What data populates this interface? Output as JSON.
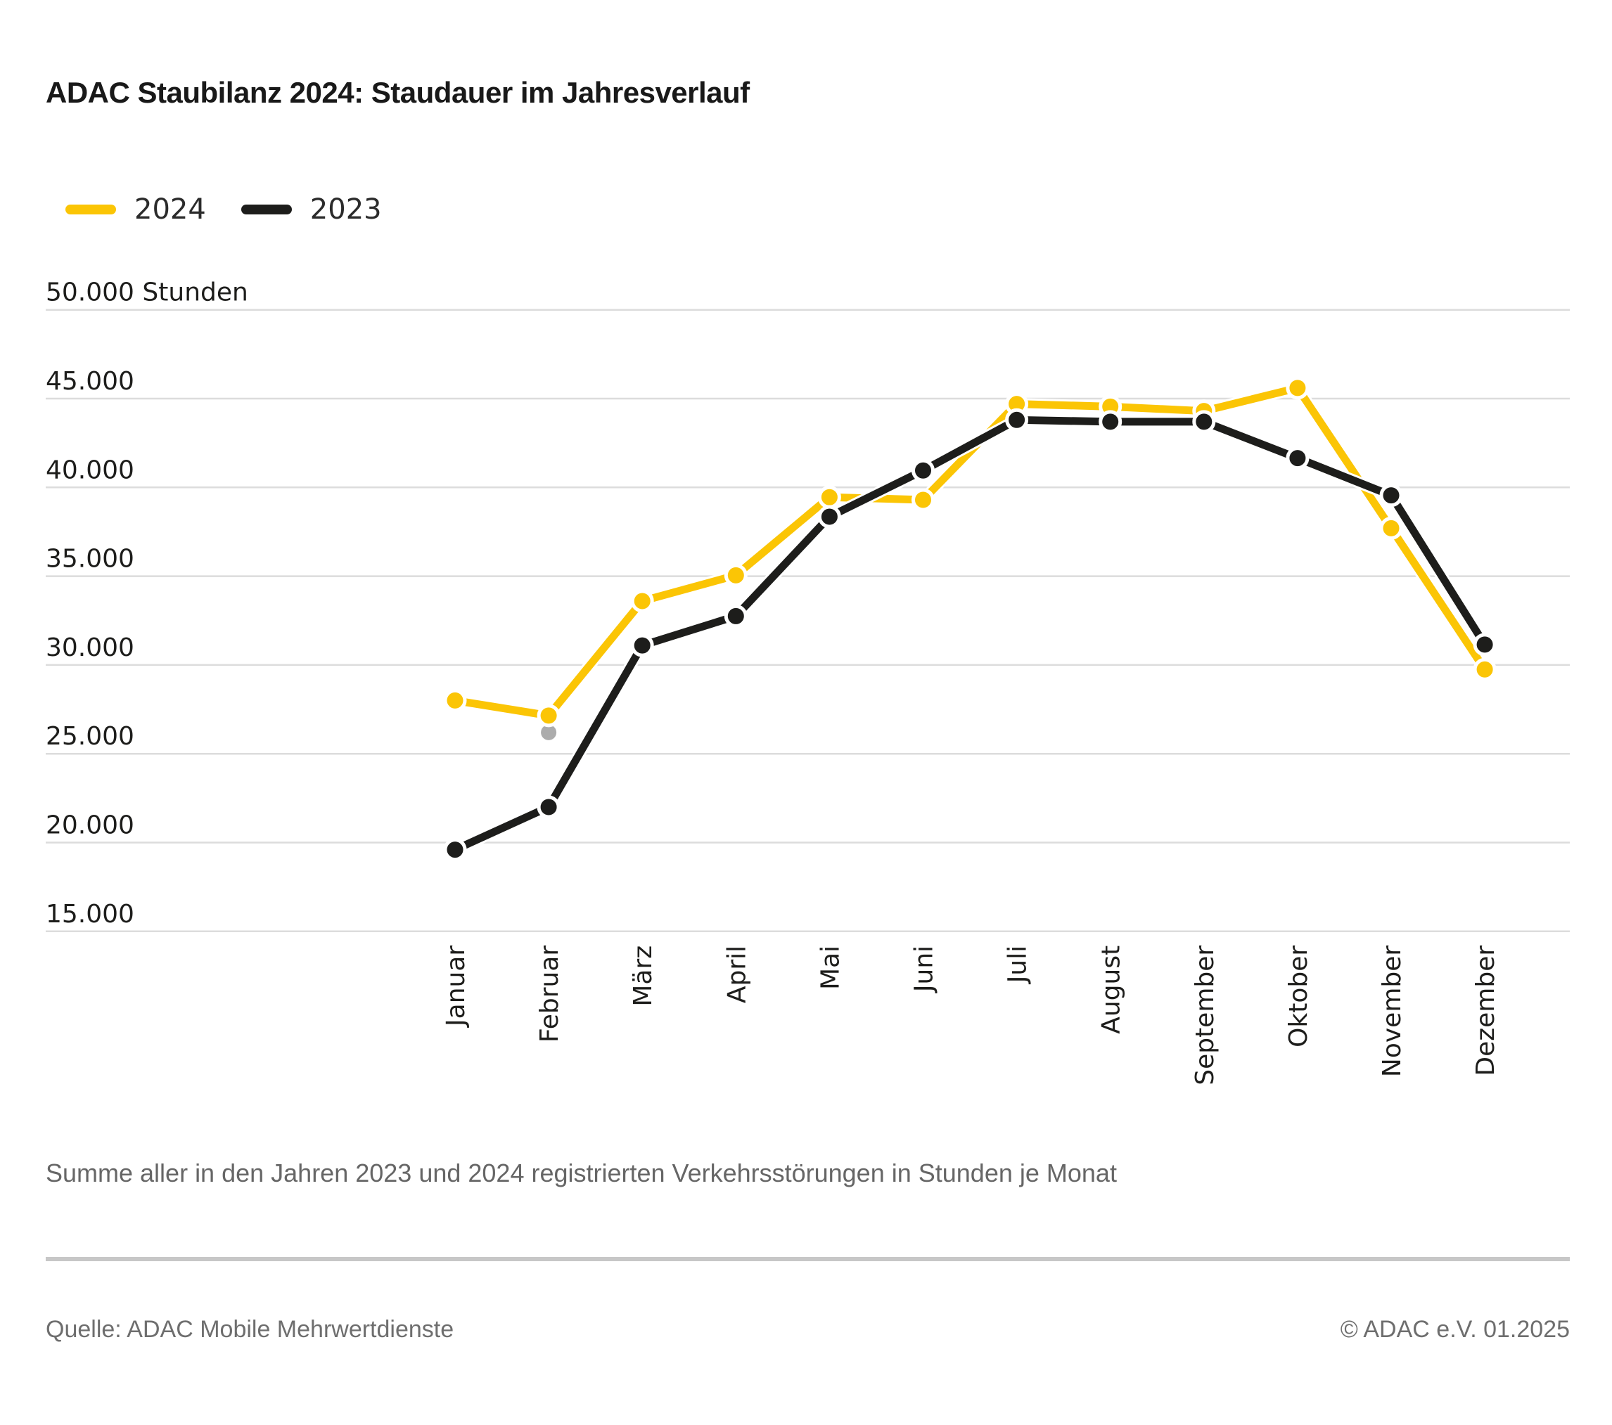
{
  "title": "ADAC Staubilanz 2024: Staudauer im Jahresverlauf",
  "legend": [
    {
      "label": "2024",
      "color": "#FBC505"
    },
    {
      "label": "2023",
      "color": "#1D1D1B"
    }
  ],
  "subtitle": "Summe aller in den Jahren 2023 und 2024 registrierten Verkehrsstörungen in Stunden je Monat",
  "footer": {
    "source": "Quelle: ADAC Mobile Mehrwertdienste",
    "copyright": "© ADAC e.V. 01.2025"
  },
  "chart_data": {
    "type": "line",
    "title": "ADAC Staubilanz 2024: Staudauer im Jahresverlauf",
    "unit": "Stunden",
    "categories": [
      "Januar",
      "Februar",
      "März",
      "April",
      "Mai",
      "Juni",
      "Juli",
      "August",
      "September",
      "Oktober",
      "November",
      "Dezember"
    ],
    "series": [
      {
        "name": "2024",
        "color": "#FBC505",
        "values": [
          28000,
          27150,
          33600,
          35050,
          39450,
          39300,
          44700,
          44550,
          44300,
          45600,
          37700,
          29750
        ]
      },
      {
        "name": "2023",
        "color": "#1D1D1B",
        "values": [
          19600,
          22000,
          31100,
          32750,
          38350,
          40950,
          43800,
          43700,
          43700,
          41650,
          39550,
          31150
        ]
      }
    ],
    "extra_point": {
      "category": "Februar",
      "value": 26200,
      "color": "#ACACAC",
      "note": "grauer Einzelpunkt unterhalb des Februar-Werts 2024"
    },
    "ylim": [
      15000,
      50000
    ],
    "yticks": [
      15000,
      20000,
      25000,
      30000,
      35000,
      40000,
      45000,
      50000
    ],
    "ytick_labels": [
      "15.000",
      "20.000",
      "25.000",
      "30.000",
      "35.000",
      "40.000",
      "45.000",
      "50.000 Stunden"
    ],
    "grid": "horizontal",
    "gridline_color": "#dcdcdc",
    "legend_position": "top-left"
  }
}
